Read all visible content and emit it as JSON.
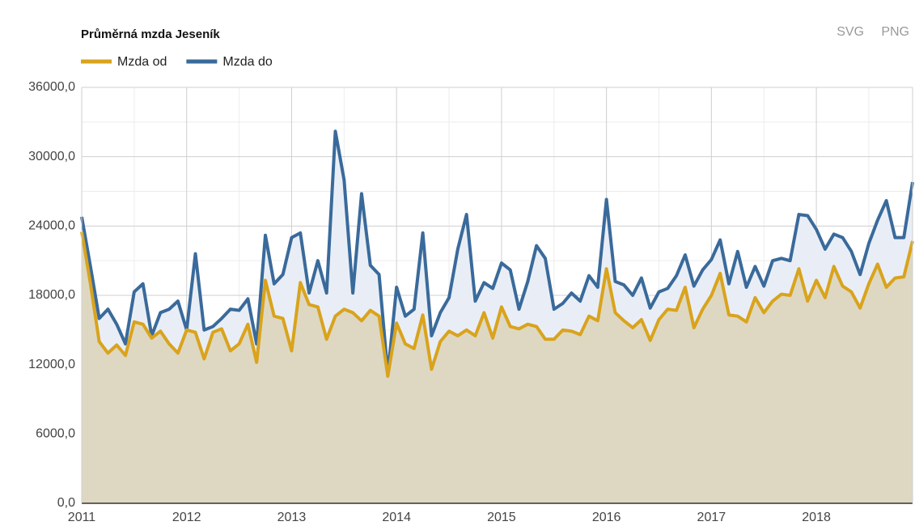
{
  "chart_data": {
    "type": "line",
    "title": "Průměrná mzda Jeseník",
    "export_buttons": [
      "SVG",
      "PNG"
    ],
    "categories": [
      "2011",
      null,
      null,
      null,
      null,
      null,
      null,
      null,
      null,
      null,
      null,
      null,
      "2012",
      null,
      null,
      null,
      null,
      null,
      null,
      null,
      null,
      null,
      null,
      null,
      "2013",
      null,
      null,
      null,
      null,
      null,
      null,
      null,
      null,
      null,
      null,
      null,
      "2014",
      null,
      null,
      null,
      null,
      null,
      null,
      null,
      null,
      null,
      null,
      null,
      "2015",
      null,
      null,
      null,
      null,
      null,
      null,
      null,
      null,
      null,
      null,
      null,
      "2016",
      null,
      null,
      null,
      null,
      null,
      null,
      null,
      null,
      null,
      null,
      null,
      "2017",
      null,
      null,
      null,
      null,
      null,
      null,
      null,
      null,
      null,
      null,
      null,
      "2018",
      null,
      null,
      null,
      null,
      null,
      null,
      null,
      null,
      null,
      null,
      null
    ],
    "series": [
      {
        "name": "Mzda od",
        "color": "#d9a31c",
        "fill": "#ded8c2",
        "values": [
          23500,
          19000,
          14000,
          13000,
          13700,
          12800,
          15700,
          15500,
          14300,
          14900,
          13800,
          13000,
          15000,
          14800,
          12500,
          14800,
          15100,
          13200,
          13800,
          15500,
          12200,
          19300,
          16200,
          16000,
          13200,
          19100,
          17200,
          17000,
          14200,
          16200,
          16800,
          16500,
          15800,
          16700,
          16200,
          11000,
          15600,
          13800,
          13400,
          16300,
          11600,
          14000,
          14900,
          14500,
          15000,
          14500,
          16500,
          14300,
          17000,
          15300,
          15100,
          15500,
          15300,
          14200,
          14200,
          15000,
          14900,
          14600,
          16200,
          15800,
          20300,
          16500,
          15800,
          15200,
          15900,
          14100,
          15900,
          16800,
          16700,
          18700,
          15200,
          16800,
          18000,
          19900,
          16300,
          16200,
          15700,
          17800,
          16500,
          17500,
          18100,
          18000,
          20300,
          17500,
          19300,
          17800,
          20500,
          18800,
          18300,
          16900,
          19000,
          20700,
          18700,
          19500,
          19600,
          22700
        ]
      },
      {
        "name": "Mzda do",
        "color": "#3a6a9b",
        "fill": "#e9eef6",
        "values": [
          24800,
          20500,
          16000,
          16800,
          15500,
          13800,
          18300,
          19000,
          14500,
          16500,
          16800,
          17500,
          15000,
          21600,
          15000,
          15300,
          16000,
          16800,
          16700,
          17700,
          13800,
          23200,
          19000,
          19800,
          23000,
          23400,
          18200,
          21000,
          18200,
          32200,
          28000,
          18200,
          26800,
          20600,
          19800,
          11200,
          18700,
          16200,
          16800,
          23400,
          14500,
          16500,
          17800,
          22000,
          25000,
          17500,
          19100,
          18600,
          20800,
          20200,
          16800,
          19200,
          22300,
          21200,
          16800,
          17300,
          18200,
          17500,
          19700,
          18700,
          26300,
          19200,
          18900,
          18000,
          19500,
          16900,
          18300,
          18600,
          19700,
          21500,
          18800,
          20200,
          21100,
          22800,
          19000,
          21800,
          18700,
          20500,
          18800,
          21000,
          21200,
          21000,
          25000,
          24900,
          23700,
          22000,
          23300,
          23000,
          21800,
          19800,
          22500,
          24500,
          26200,
          23000,
          23000,
          27800
        ]
      }
    ],
    "ylim": [
      0,
      36000
    ],
    "yticks": [
      {
        "value": 0,
        "label": "0,0"
      },
      {
        "value": 6000,
        "label": "6000,0"
      },
      {
        "value": 12000,
        "label": "12000,0"
      },
      {
        "value": 18000,
        "label": "18000,0"
      },
      {
        "value": 24000,
        "label": "24000,0"
      },
      {
        "value": 30000,
        "label": "30000,0"
      },
      {
        "value": 36000,
        "label": "36000,0"
      }
    ],
    "grid": true
  }
}
